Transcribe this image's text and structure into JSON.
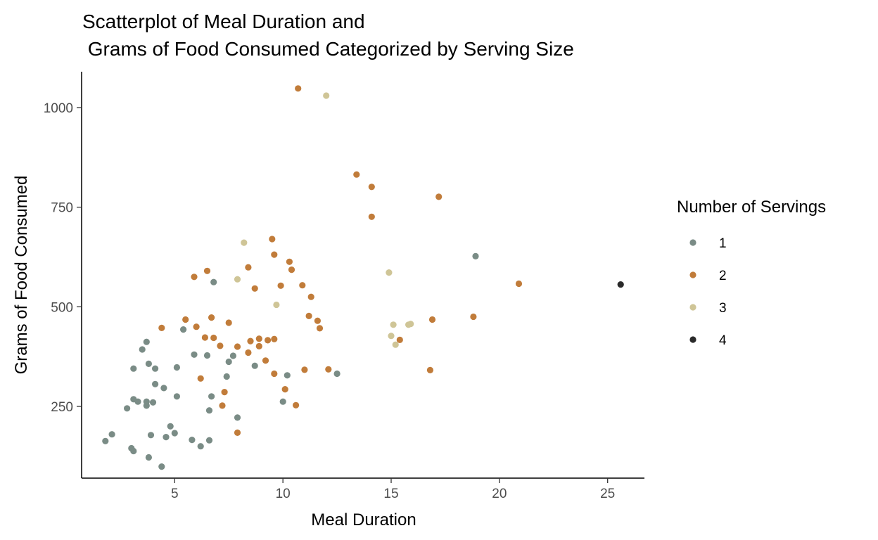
{
  "chart_data": {
    "type": "scatter",
    "title_line1": "Scatterplot of Meal Duration and",
    "title_line2": " Grams of Food Consumed Categorized by Serving Size",
    "xlabel": "Meal Duration",
    "ylabel": "Grams of Food Consumed",
    "xlim": [
      0.7,
      26.7
    ],
    "ylim": [
      70,
      1090
    ],
    "xticks": [
      5,
      10,
      15,
      20,
      25
    ],
    "yticks": [
      250,
      500,
      750,
      1000
    ],
    "grid": false,
    "legend": {
      "title": "Number of Servings",
      "placement": "right",
      "entries": [
        "1",
        "2",
        "3",
        "4"
      ]
    },
    "series": [
      {
        "name": "1",
        "color": "#7a8c86",
        "points": [
          [
            1.8,
            163
          ],
          [
            2.1,
            180
          ],
          [
            2.8,
            245
          ],
          [
            3.0,
            145
          ],
          [
            3.1,
            138
          ],
          [
            3.1,
            345
          ],
          [
            3.1,
            268
          ],
          [
            3.3,
            262
          ],
          [
            3.5,
            393
          ],
          [
            3.7,
            412
          ],
          [
            3.7,
            262
          ],
          [
            3.7,
            252
          ],
          [
            3.8,
            122
          ],
          [
            3.8,
            357
          ],
          [
            3.9,
            178
          ],
          [
            4.0,
            260
          ],
          [
            4.1,
            345
          ],
          [
            4.1,
            306
          ],
          [
            4.4,
            99
          ],
          [
            4.5,
            296
          ],
          [
            4.6,
            173
          ],
          [
            4.8,
            200
          ],
          [
            5.0,
            183
          ],
          [
            5.1,
            275
          ],
          [
            5.1,
            348
          ],
          [
            5.4,
            443
          ],
          [
            5.8,
            166
          ],
          [
            5.9,
            380
          ],
          [
            6.2,
            150
          ],
          [
            6.5,
            378
          ],
          [
            6.6,
            240
          ],
          [
            6.6,
            165
          ],
          [
            6.7,
            275
          ],
          [
            6.8,
            562
          ],
          [
            7.4,
            325
          ],
          [
            7.5,
            362
          ],
          [
            7.7,
            377
          ],
          [
            7.9,
            222
          ],
          [
            8.7,
            352
          ],
          [
            10.0,
            262
          ],
          [
            10.2,
            328
          ],
          [
            12.5,
            332
          ],
          [
            18.9,
            627
          ]
        ]
      },
      {
        "name": "2",
        "color": "#c17c3a",
        "points": [
          [
            4.4,
            447
          ],
          [
            5.5,
            468
          ],
          [
            5.9,
            575
          ],
          [
            6.2,
            320
          ],
          [
            6.4,
            423
          ],
          [
            6.5,
            590
          ],
          [
            6.7,
            473
          ],
          [
            6.8,
            422
          ],
          [
            7.1,
            402
          ],
          [
            7.2,
            252
          ],
          [
            7.3,
            286
          ],
          [
            7.5,
            460
          ],
          [
            7.9,
            400
          ],
          [
            7.9,
            184
          ],
          [
            8.4,
            385
          ],
          [
            8.4,
            599
          ],
          [
            8.5,
            414
          ],
          [
            8.7,
            546
          ],
          [
            8.9,
            401
          ],
          [
            8.9,
            420
          ],
          [
            9.2,
            365
          ],
          [
            9.3,
            416
          ],
          [
            9.5,
            670
          ],
          [
            9.6,
            419
          ],
          [
            9.6,
            332
          ],
          [
            9.6,
            631
          ],
          [
            9.9,
            553
          ],
          [
            10.1,
            293
          ],
          [
            10.3,
            613
          ],
          [
            10.4,
            593
          ],
          [
            10.6,
            253
          ],
          [
            10.7,
            1048
          ],
          [
            10.9,
            554
          ],
          [
            11.0,
            342
          ],
          [
            11.2,
            477
          ],
          [
            11.3,
            525
          ],
          [
            11.6,
            465
          ],
          [
            11.7,
            446
          ],
          [
            12.1,
            343
          ],
          [
            13.4,
            832
          ],
          [
            14.1,
            801
          ],
          [
            14.1,
            726
          ],
          [
            15.4,
            417
          ],
          [
            16.8,
            341
          ],
          [
            16.9,
            468
          ],
          [
            17.2,
            776
          ],
          [
            18.8,
            475
          ],
          [
            20.9,
            558
          ],
          [
            6.0,
            450
          ]
        ]
      },
      {
        "name": "3",
        "color": "#cfc597",
        "points": [
          [
            7.9,
            569
          ],
          [
            8.2,
            661
          ],
          [
            9.7,
            505
          ],
          [
            12.0,
            1030
          ],
          [
            14.9,
            586
          ],
          [
            15.0,
            427
          ],
          [
            15.1,
            455
          ],
          [
            15.2,
            405
          ],
          [
            15.8,
            455
          ],
          [
            15.9,
            457
          ]
        ]
      },
      {
        "name": "4",
        "color": "#2a2a2a",
        "points": [
          [
            25.6,
            556
          ]
        ]
      }
    ]
  }
}
